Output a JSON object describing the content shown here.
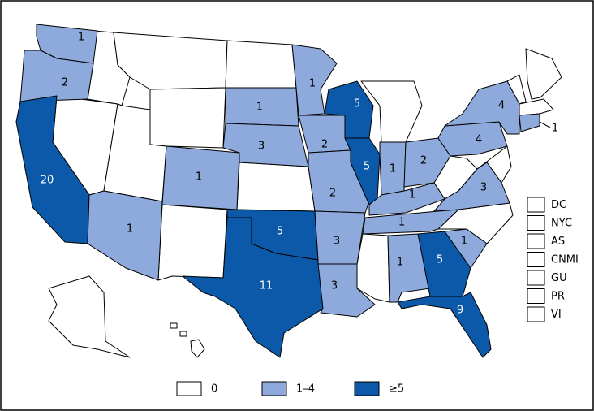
{
  "map": {
    "states": [
      {
        "value": 1,
        "color": "#8ea9db"
      },
      {
        "value": 2,
        "color": "#8ea9db"
      },
      {
        "value": 20,
        "color": "#0b59a8"
      },
      {
        "value": 1,
        "color": "#8ea9db"
      },
      {
        "value": 1,
        "color": "#8ea9db"
      },
      {
        "value": 1,
        "color": "#8ea9db"
      },
      {
        "value": 3,
        "color": "#8ea9db"
      },
      {
        "value": 5,
        "color": "#0b59a8"
      },
      {
        "value": 11,
        "color": "#0b59a8"
      },
      {
        "value": 1,
        "color": "#8ea9db"
      },
      {
        "value": 2,
        "color": "#8ea9db"
      },
      {
        "value": 2,
        "color": "#8ea9db"
      },
      {
        "value": 3,
        "color": "#8ea9db"
      },
      {
        "value": 3,
        "color": "#8ea9db"
      },
      {
        "value": 5,
        "color": "#0b59a8"
      },
      {
        "value": 5,
        "color": "#0b59a8"
      },
      {
        "value": 1,
        "color": "#8ea9db"
      },
      {
        "value": 2,
        "color": "#8ea9db"
      },
      {
        "value": 1,
        "color": "#8ea9db"
      },
      {
        "value": 1,
        "color": "#8ea9db"
      },
      {
        "value": 1,
        "color": "#8ea9db"
      },
      {
        "value": 5,
        "color": "#0b59a8"
      },
      {
        "value": 9,
        "color": "#0b59a8"
      },
      {
        "value": 1,
        "color": "#8ea9db"
      },
      {
        "value": 3,
        "color": "#8ea9db"
      },
      {
        "value": 4,
        "color": "#8ea9db"
      },
      {
        "value": 4,
        "color": "#8ea9db"
      },
      {
        "value": 1,
        "color": "#8ea9db"
      }
    ],
    "territories": [
      "DC",
      "NYC",
      "AS",
      "CNMI",
      "GU",
      "PR",
      "VI"
    ],
    "legend": [
      {
        "label": "0",
        "color": "#ffffff"
      },
      {
        "label": "1–4",
        "color": "#8ea9db"
      },
      {
        "label": "≥5",
        "color": "#0b59a8"
      }
    ]
  }
}
